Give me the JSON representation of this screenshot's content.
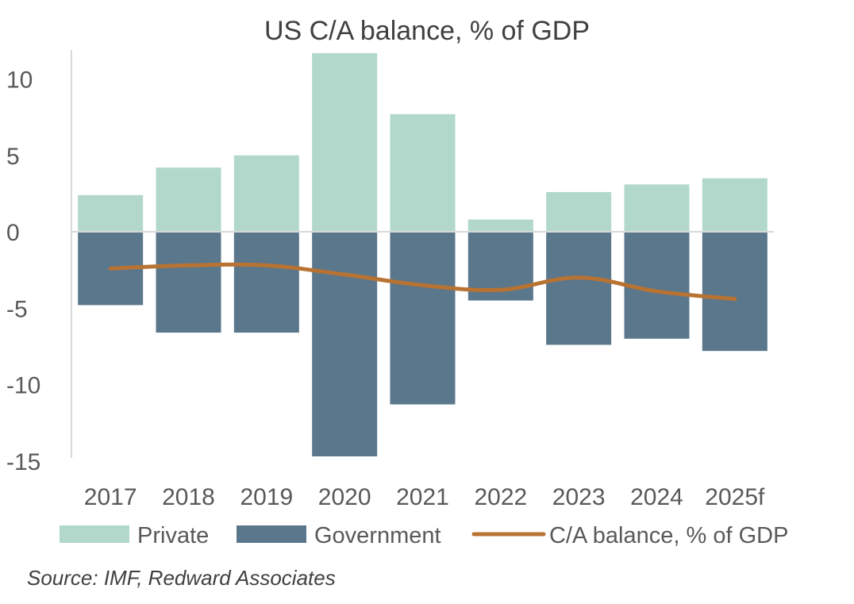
{
  "chart_data": {
    "type": "bar",
    "title": "US  C/A balance, % of GDP",
    "categories": [
      "2017",
      "2018",
      "2019",
      "2020",
      "2021",
      "2022",
      "2023",
      "2024",
      "2025f"
    ],
    "series": [
      {
        "name": "Private",
        "kind": "stacked-bar",
        "color": "#b2d8cc",
        "values": [
          2.4,
          4.2,
          5.0,
          11.8,
          7.7,
          0.8,
          2.6,
          3.1,
          3.5
        ]
      },
      {
        "name": "Government",
        "kind": "stacked-bar",
        "color": "#5a778c",
        "values": [
          -4.8,
          -6.6,
          -6.6,
          -14.7,
          -11.3,
          -4.5,
          -7.4,
          -7.0,
          -7.8
        ]
      },
      {
        "name": "C/A balance, % of GDP",
        "kind": "line",
        "color": "#b87333",
        "values": [
          -2.4,
          -2.2,
          -2.2,
          -2.8,
          -3.5,
          -3.8,
          -3.0,
          -3.9,
          -4.4
        ]
      }
    ],
    "ylim": [
      -15,
      12
    ],
    "yticks": [
      "10",
      "5",
      "0",
      "-5",
      "-10",
      "-15"
    ],
    "ytick_values": [
      10,
      5,
      0,
      -5,
      -10,
      -15
    ],
    "xlabel": "",
    "ylabel": "",
    "grid": false,
    "legend_position": "bottom"
  },
  "source": "Source: IMF, Redward Associates"
}
